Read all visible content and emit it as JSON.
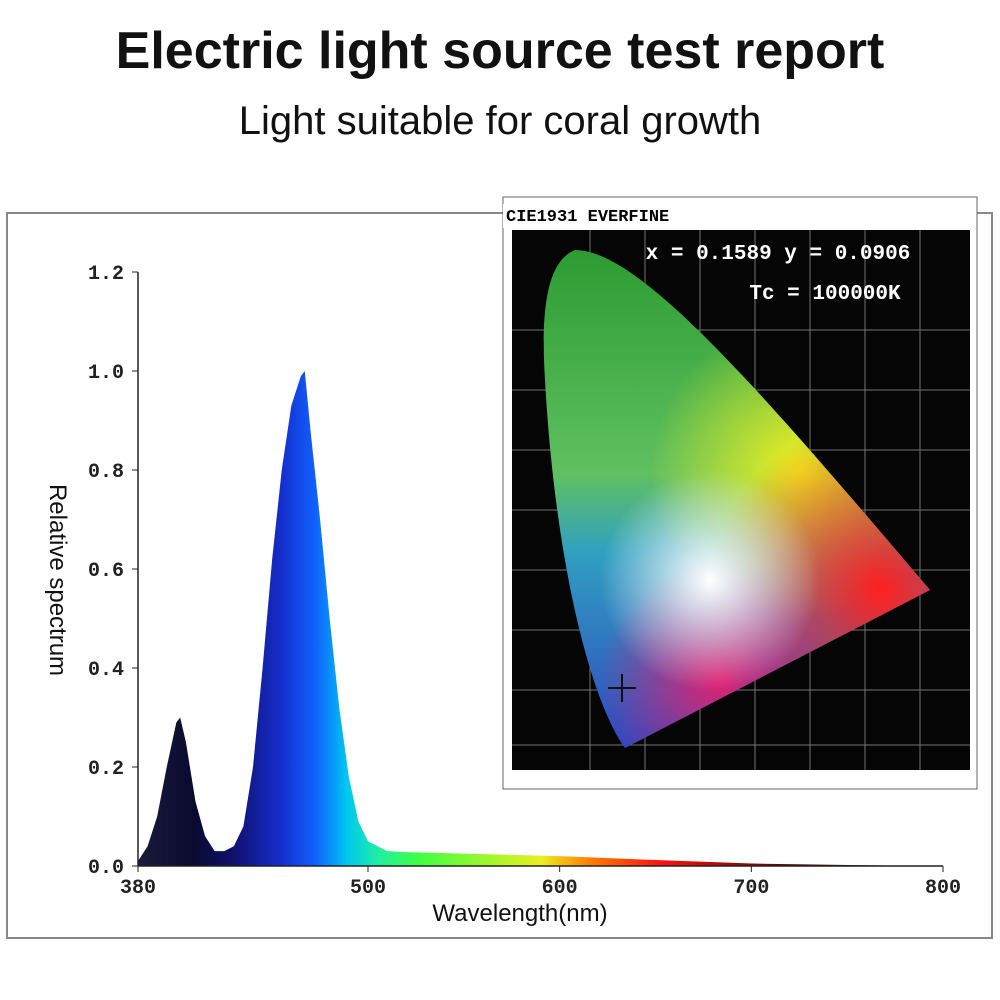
{
  "title": "Electric light source test report",
  "subtitle": "Light suitable for coral growth",
  "chart_data": {
    "type": "area",
    "x_label": "Wavelength(nm)",
    "y_label": "Relative spectrum",
    "x": [
      380,
      385,
      390,
      395,
      400,
      402,
      405,
      410,
      415,
      420,
      425,
      430,
      435,
      440,
      445,
      450,
      455,
      460,
      465,
      467,
      470,
      475,
      480,
      485,
      490,
      495,
      500,
      510,
      520,
      550,
      600,
      650,
      700,
      750,
      800
    ],
    "values": [
      0.01,
      0.04,
      0.1,
      0.2,
      0.29,
      0.3,
      0.25,
      0.13,
      0.06,
      0.03,
      0.03,
      0.04,
      0.08,
      0.2,
      0.4,
      0.62,
      0.8,
      0.93,
      0.99,
      1.0,
      0.88,
      0.7,
      0.5,
      0.32,
      0.18,
      0.09,
      0.05,
      0.03,
      0.028,
      0.025,
      0.02,
      0.012,
      0.005,
      0.002,
      0.0
    ],
    "xlim": [
      380,
      800
    ],
    "ylim": [
      0,
      1.2
    ],
    "xticks": [
      380,
      500,
      600,
      700,
      800
    ],
    "yticks": [
      {
        "value": 0,
        "label": "0.0"
      },
      0.2,
      0.4,
      0.6,
      0.8,
      {
        "value": 1,
        "label": "1.0"
      },
      1.2
    ]
  },
  "inset": {
    "label": "CIE1931 EVERFINE",
    "coordinates": "x = 0.1589 y = 0.0906",
    "color_temperature": "Tc = 100000K"
  }
}
